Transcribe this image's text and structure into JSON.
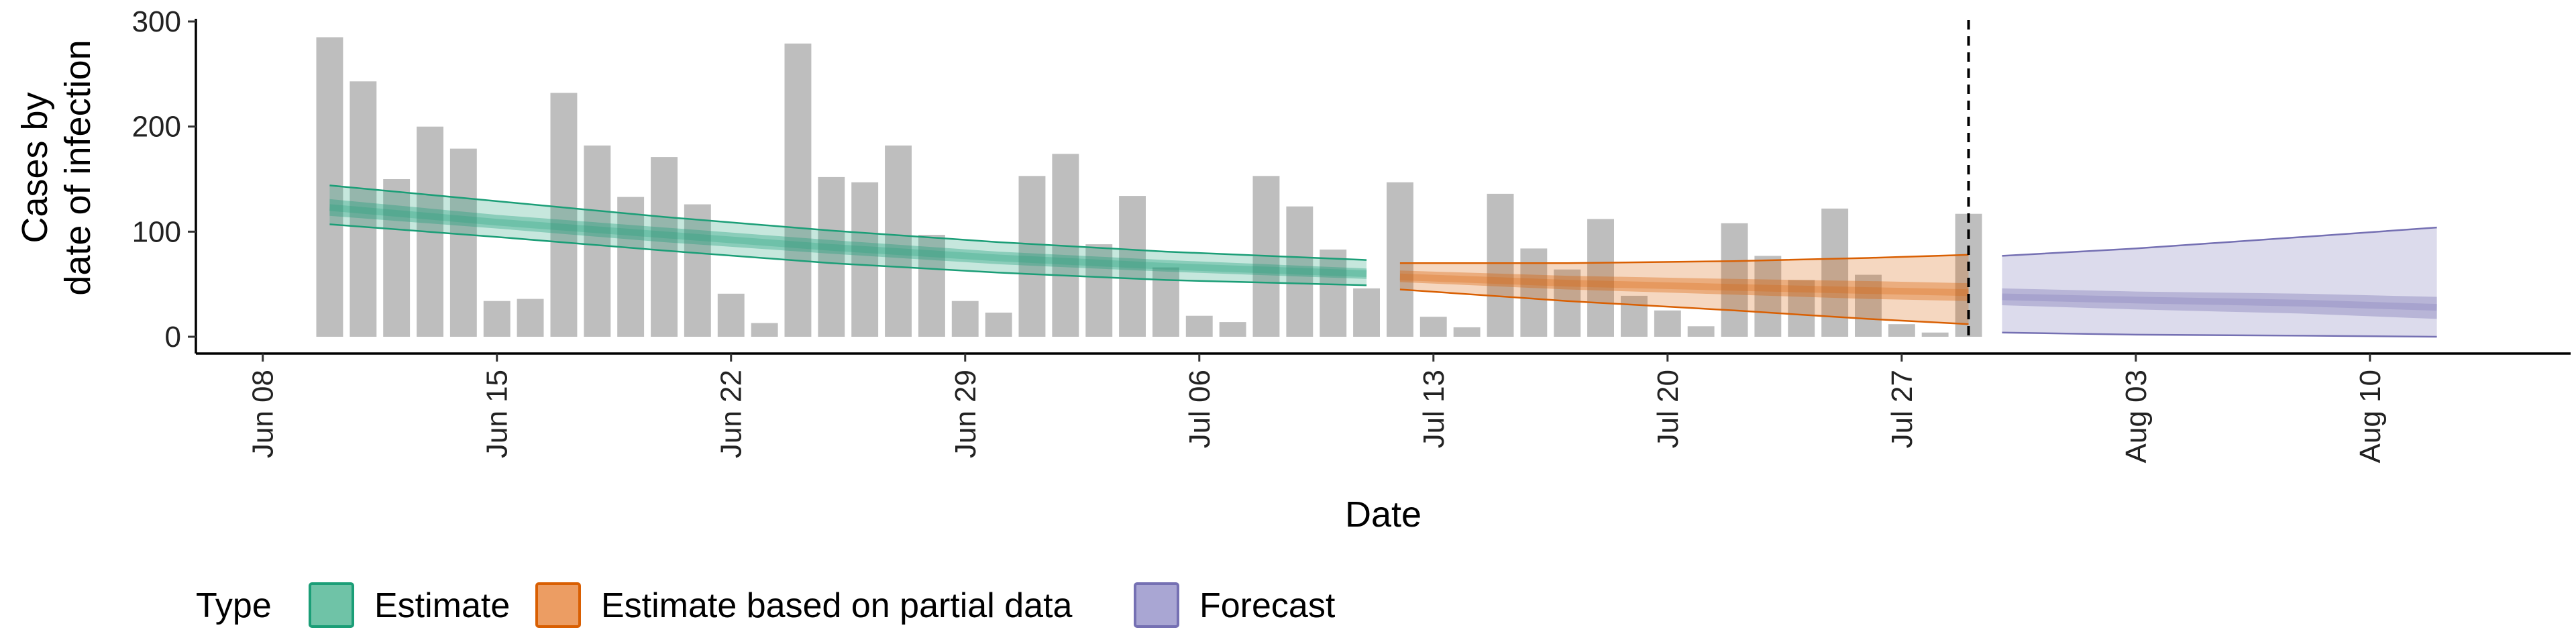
{
  "chart_data": {
    "type": "bar",
    "xlabel": "Date",
    "ylabel_lines": [
      "Cases by",
      "date of infection"
    ],
    "ylim": [
      0,
      300
    ],
    "y_ticks": [
      0,
      100,
      200,
      300
    ],
    "x_range": [
      "2020-06-06",
      "2020-08-16"
    ],
    "x_ticks": [
      {
        "date": "2020-06-08",
        "label": "Jun 08"
      },
      {
        "date": "2020-06-15",
        "label": "Jun 15"
      },
      {
        "date": "2020-06-22",
        "label": "Jun 22"
      },
      {
        "date": "2020-06-29",
        "label": "Jun 29"
      },
      {
        "date": "2020-07-06",
        "label": "Jul 06"
      },
      {
        "date": "2020-07-13",
        "label": "Jul 13"
      },
      {
        "date": "2020-07-20",
        "label": "Jul 20"
      },
      {
        "date": "2020-07-27",
        "label": "Jul 27"
      },
      {
        "date": "2020-08-03",
        "label": "Aug 03"
      },
      {
        "date": "2020-08-10",
        "label": "Aug 10"
      }
    ],
    "bar_start_date": "2020-06-10",
    "bar_values": [
      285,
      243,
      150,
      200,
      179,
      34,
      36,
      232,
      182,
      133,
      171,
      126,
      41,
      13,
      279,
      152,
      147,
      182,
      97,
      34,
      23,
      153,
      174,
      88,
      134,
      66,
      20,
      14,
      153,
      124,
      83,
      46,
      147,
      19,
      9,
      136,
      84,
      64,
      112,
      39,
      25,
      10,
      108,
      77,
      54,
      122,
      59,
      12,
      4,
      117
    ],
    "vline_date": "2020-07-29",
    "bands": [
      {
        "type": "Estimate",
        "dates": [
          "2020-06-10",
          "2020-06-15",
          "2020-06-20",
          "2020-06-25",
          "2020-06-30",
          "2020-07-05",
          "2020-07-11"
        ],
        "lower90": [
          107,
          95,
          82,
          70,
          61,
          54,
          49
        ],
        "lower50": [
          115,
          103,
          90,
          79,
          69,
          62,
          55
        ],
        "median": [
          123,
          109,
          97,
          85,
          75,
          67,
          60
        ],
        "upper50": [
          131,
          116,
          104,
          92,
          81,
          73,
          65
        ],
        "upper90": [
          144,
          129,
          114,
          101,
          90,
          81,
          73
        ]
      },
      {
        "type": "Estimate based on partial data",
        "dates": [
          "2020-07-12",
          "2020-07-17",
          "2020-07-22",
          "2020-07-26",
          "2020-07-29"
        ],
        "lower90": [
          45,
          34,
          25,
          17,
          12
        ],
        "lower50": [
          52,
          45,
          40,
          36,
          34
        ],
        "median": [
          57,
          51,
          47,
          44,
          42
        ],
        "upper50": [
          63,
          58,
          55,
          53,
          51
        ],
        "upper90": [
          70,
          70,
          72,
          75,
          78
        ]
      },
      {
        "type": "Forecast",
        "dates": [
          "2020-07-30",
          "2020-08-03",
          "2020-08-08",
          "2020-08-12"
        ],
        "lower90": [
          4,
          2,
          1,
          0
        ],
        "lower50": [
          30,
          26,
          22,
          17
        ],
        "median": [
          38,
          35,
          32,
          28
        ],
        "upper50": [
          46,
          43,
          41,
          38
        ],
        "upper90": [
          77,
          84,
          95,
          104
        ]
      }
    ],
    "legend": {
      "title": "Type",
      "position": "bottom-left",
      "entries": [
        {
          "label": "Estimate",
          "fill": "#6fc3a7",
          "stroke": "#1b9e77"
        },
        {
          "label": "Estimate based on partial data",
          "fill": "#ec9d63",
          "stroke": "#d95f02"
        },
        {
          "label": "Forecast",
          "fill": "#a9a6d3",
          "stroke": "#7570b3"
        }
      ]
    },
    "colors": {
      "bar": "#bebebe",
      "Estimate": "#1b9e77",
      "Estimate based on partial data": "#d95f02",
      "Forecast": "#7570b3"
    }
  }
}
